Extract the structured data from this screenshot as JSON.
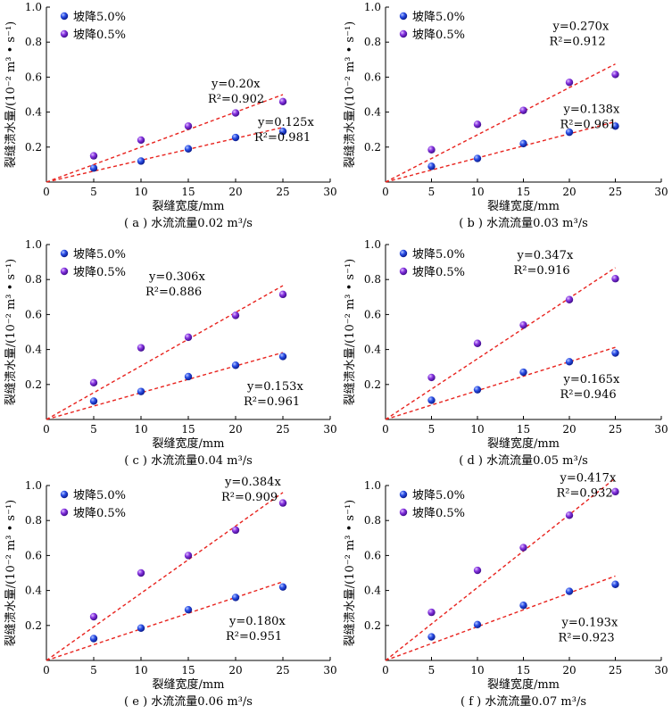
{
  "colors": {
    "blue_series": "#1f3fd6",
    "purple_series": "#7a2fd9",
    "fit_line": "#e8231e",
    "axis": "#000000"
  },
  "chart_data": [
    {
      "type": "scatter",
      "caption": "( a ) 水流流量0.02 m³/s",
      "xlabel": "裂缝宽度/mm",
      "ylabel": "裂缝溃水量/(10⁻² m³ • s⁻¹)",
      "xlim": [
        0,
        30
      ],
      "ylim": [
        0,
        1.0
      ],
      "xticks": [
        "0",
        "5",
        "10",
        "15",
        "20",
        "25",
        "30"
      ],
      "yticks": [
        "0.2",
        "0.4",
        "0.6",
        "0.8",
        "1.0"
      ],
      "legend_position": "top-left",
      "series": [
        {
          "name": "坡降5.0%",
          "color": "blue",
          "x": [
            5,
            10,
            15,
            20,
            25
          ],
          "y": [
            0.08,
            0.12,
            0.19,
            0.255,
            0.29
          ],
          "fit_slope": 0.125,
          "fit_eq": "y=0.125x",
          "fit_r2": "R²=0.981"
        },
        {
          "name": "坡降0.5%",
          "color": "purple",
          "x": [
            5,
            10,
            15,
            20,
            25
          ],
          "y": [
            0.15,
            0.24,
            0.32,
            0.395,
            0.46
          ],
          "fit_slope": 0.2,
          "fit_eq": "y=0.20x",
          "fit_r2": "R²=0.902"
        }
      ]
    },
    {
      "type": "scatter",
      "caption": "( b ) 水流流量0.03 m³/s",
      "xlabel": "裂缝宽度/mm",
      "ylabel": "裂缝溃水量/(10⁻² m³ • s⁻¹)",
      "xlim": [
        0,
        30
      ],
      "ylim": [
        0,
        1.0
      ],
      "xticks": [
        "0",
        "5",
        "10",
        "15",
        "20",
        "25",
        "30"
      ],
      "yticks": [
        "0.2",
        "0.4",
        "0.6",
        "0.8",
        "1.0"
      ],
      "legend_position": "top-left",
      "series": [
        {
          "name": "坡降5.0%",
          "color": "blue",
          "x": [
            5,
            10,
            15,
            20,
            25
          ],
          "y": [
            0.09,
            0.135,
            0.22,
            0.285,
            0.32
          ],
          "fit_slope": 0.138,
          "fit_eq": "y=0.138x",
          "fit_r2": "R²=0.961"
        },
        {
          "name": "坡降0.5%",
          "color": "purple",
          "x": [
            5,
            10,
            15,
            20,
            25
          ],
          "y": [
            0.185,
            0.33,
            0.41,
            0.57,
            0.615
          ],
          "fit_slope": 0.27,
          "fit_eq": "y=0.270x",
          "fit_r2": "R²=0.912"
        }
      ]
    },
    {
      "type": "scatter",
      "caption": "( c ) 水流流量0.04 m³/s",
      "xlabel": "裂缝宽度/mm",
      "ylabel": "裂缝溃水量/(10⁻² m³ • s⁻¹)",
      "xlim": [
        0,
        30
      ],
      "ylim": [
        0,
        1.0
      ],
      "xticks": [
        "0",
        "5",
        "10",
        "15",
        "20",
        "25",
        "30"
      ],
      "yticks": [
        "0.2",
        "0.4",
        "0.6",
        "0.8",
        "1.0"
      ],
      "legend_position": "top-left",
      "series": [
        {
          "name": "坡降5.0%",
          "color": "blue",
          "x": [
            5,
            10,
            15,
            20,
            25
          ],
          "y": [
            0.105,
            0.16,
            0.245,
            0.31,
            0.36
          ],
          "fit_slope": 0.153,
          "fit_eq": "y=0.153x",
          "fit_r2": "R²=0.961"
        },
        {
          "name": "坡降0.5%",
          "color": "purple",
          "x": [
            5,
            10,
            15,
            20,
            25
          ],
          "y": [
            0.21,
            0.41,
            0.47,
            0.595,
            0.715
          ],
          "fit_slope": 0.306,
          "fit_eq": "y=0.306x",
          "fit_r2": "R²=0.886"
        }
      ]
    },
    {
      "type": "scatter",
      "caption": "( d ) 水流流量0.05 m³/s",
      "xlabel": "裂缝宽度/mm",
      "ylabel": "裂缝溃水量/(10⁻² m³ • s⁻¹)",
      "xlim": [
        0,
        30
      ],
      "ylim": [
        0,
        1.0
      ],
      "xticks": [
        "0",
        "5",
        "10",
        "15",
        "20",
        "25",
        "30"
      ],
      "yticks": [
        "0.2",
        "0.4",
        "0.6",
        "0.8",
        "1.0"
      ],
      "legend_position": "top-left",
      "series": [
        {
          "name": "坡降5.0%",
          "color": "blue",
          "x": [
            5,
            10,
            15,
            20,
            25
          ],
          "y": [
            0.11,
            0.17,
            0.27,
            0.33,
            0.38
          ],
          "fit_slope": 0.165,
          "fit_eq": "y=0.165x",
          "fit_r2": "R²=0.946"
        },
        {
          "name": "坡降0.5%",
          "color": "purple",
          "x": [
            5,
            10,
            15,
            20,
            25
          ],
          "y": [
            0.24,
            0.435,
            0.54,
            0.685,
            0.805
          ],
          "fit_slope": 0.347,
          "fit_eq": "y=0.347x",
          "fit_r2": "R²=0.916"
        }
      ]
    },
    {
      "type": "scatter",
      "caption": "( e ) 水流流量0.06 m³/s",
      "xlabel": "裂缝宽度/mm",
      "ylabel": "裂缝溃水量/(10⁻² m³ • s⁻¹)",
      "xlim": [
        0,
        30
      ],
      "ylim": [
        0,
        1.0
      ],
      "xticks": [
        "0",
        "5",
        "10",
        "15",
        "20",
        "25",
        "30"
      ],
      "yticks": [
        "0.2",
        "0.4",
        "0.6",
        "0.8",
        "1.0"
      ],
      "legend_position": "top-left",
      "series": [
        {
          "name": "坡降5.0%",
          "color": "blue",
          "x": [
            5,
            10,
            15,
            20,
            25
          ],
          "y": [
            0.125,
            0.185,
            0.29,
            0.36,
            0.42
          ],
          "fit_slope": 0.18,
          "fit_eq": "y=0.180x",
          "fit_r2": "R²=0.951"
        },
        {
          "name": "坡降0.5%",
          "color": "purple",
          "x": [
            5,
            10,
            15,
            20,
            25
          ],
          "y": [
            0.25,
            0.5,
            0.6,
            0.745,
            0.9
          ],
          "fit_slope": 0.384,
          "fit_eq": "y=0.384x",
          "fit_r2": "R²=0.909"
        }
      ]
    },
    {
      "type": "scatter",
      "caption": "( f ) 水流流量0.07 m³/s",
      "xlabel": "裂缝宽度/mm",
      "ylabel": "裂缝溃水量/(10⁻² m³ • s⁻¹)",
      "xlim": [
        0,
        30
      ],
      "ylim": [
        0,
        1.0
      ],
      "xticks": [
        "0",
        "5",
        "10",
        "15",
        "20",
        "25",
        "30"
      ],
      "yticks": [
        "0.2",
        "0.4",
        "0.6",
        "0.8",
        "1.0"
      ],
      "legend_position": "top-left",
      "series": [
        {
          "name": "坡降5.0%",
          "color": "blue",
          "x": [
            5,
            10,
            15,
            20,
            25
          ],
          "y": [
            0.135,
            0.205,
            0.315,
            0.395,
            0.435
          ],
          "fit_slope": 0.193,
          "fit_eq": "y=0.193x",
          "fit_r2": "R²=0.923"
        },
        {
          "name": "坡降0.5%",
          "color": "purple",
          "x": [
            5,
            10,
            15,
            20,
            25
          ],
          "y": [
            0.275,
            0.515,
            0.645,
            0.83,
            0.965
          ],
          "fit_slope": 0.417,
          "fit_eq": "y=0.417x",
          "fit_r2": "R²=0.932"
        }
      ]
    }
  ]
}
